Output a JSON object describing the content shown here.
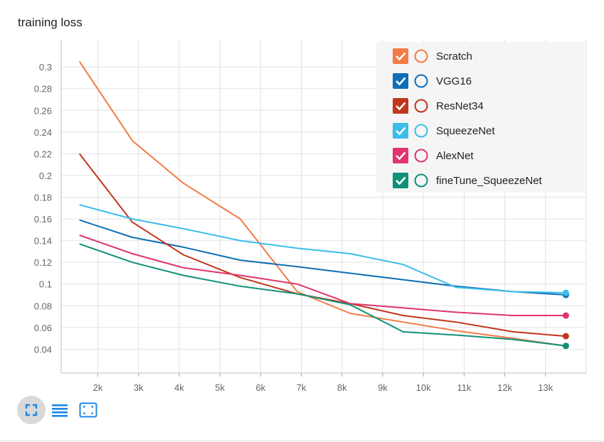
{
  "toolbar": {
    "fullscreen_icon": "fullscreen-corners-icon",
    "log_scale_icon": "lines-icon",
    "fit_domain_icon": "fit-to-data-icon",
    "accent": "#1e88e5"
  },
  "chart_data": {
    "type": "line",
    "title": "training loss",
    "xlabel": "",
    "ylabel": "",
    "xlim": [
      1100,
      14000
    ],
    "ylim": [
      0.018,
      0.325
    ],
    "x_ticks": [
      2000,
      3000,
      4000,
      5000,
      6000,
      7000,
      8000,
      9000,
      10000,
      11000,
      12000,
      13000
    ],
    "x_tick_labels": [
      "2k",
      "3k",
      "4k",
      "5k",
      "6k",
      "7k",
      "8k",
      "9k",
      "10k",
      "11k",
      "12k",
      "13k"
    ],
    "y_ticks": [
      0.04,
      0.06,
      0.08,
      0.1,
      0.12,
      0.14,
      0.16,
      0.18,
      0.2,
      0.22,
      0.24,
      0.26,
      0.28,
      0.3
    ],
    "y_tick_labels": [
      "0.04",
      "0.06",
      "0.08",
      "0.1",
      "0.12",
      "0.14",
      "0.16",
      "0.18",
      "0.2",
      "0.22",
      "0.24",
      "0.26",
      "0.28",
      "0.3"
    ],
    "grid": true,
    "legend_position": "top-right",
    "series": [
      {
        "name": "Scratch",
        "color": "#f47a45",
        "x": [
          1550,
          2850,
          4100,
          5500,
          6900,
          8200,
          9500,
          10800,
          12200,
          13500
        ],
        "y": [
          0.305,
          0.232,
          0.193,
          0.16,
          0.093,
          0.073,
          0.065,
          0.057,
          0.05,
          0.043
        ]
      },
      {
        "name": "VGG16",
        "color": "#0f6fb7",
        "x": [
          1550,
          2850,
          4100,
          5500,
          6900,
          8200,
          9500,
          10800,
          12200,
          13500
        ],
        "y": [
          0.159,
          0.143,
          0.134,
          0.122,
          0.116,
          0.11,
          0.104,
          0.098,
          0.093,
          0.09
        ]
      },
      {
        "name": "ResNet34",
        "color": "#c0361a",
        "x": [
          1550,
          2850,
          4100,
          5500,
          6900,
          8200,
          9500,
          10800,
          12200,
          13500
        ],
        "y": [
          0.22,
          0.157,
          0.127,
          0.106,
          0.091,
          0.082,
          0.071,
          0.065,
          0.056,
          0.052
        ]
      },
      {
        "name": "SqueezeNet",
        "color": "#3bbde9",
        "x": [
          1550,
          2850,
          4100,
          5500,
          6900,
          8200,
          9500,
          10800,
          12200,
          13500
        ],
        "y": [
          0.173,
          0.16,
          0.151,
          0.14,
          0.133,
          0.128,
          0.118,
          0.097,
          0.093,
          0.092
        ]
      },
      {
        "name": "AlexNet",
        "color": "#e0356e",
        "x": [
          1550,
          2850,
          4100,
          5500,
          6900,
          8200,
          9500,
          10800,
          12200,
          13500
        ],
        "y": [
          0.145,
          0.128,
          0.115,
          0.108,
          0.1,
          0.082,
          0.078,
          0.074,
          0.071,
          0.071
        ]
      },
      {
        "name": "fineTune_SqueezeNet",
        "color": "#0f9178",
        "x": [
          1550,
          2850,
          4100,
          5500,
          6900,
          8200,
          9500,
          10800,
          12200,
          13500
        ],
        "y": [
          0.137,
          0.12,
          0.108,
          0.098,
          0.091,
          0.081,
          0.056,
          0.053,
          0.049,
          0.043
        ]
      }
    ]
  }
}
